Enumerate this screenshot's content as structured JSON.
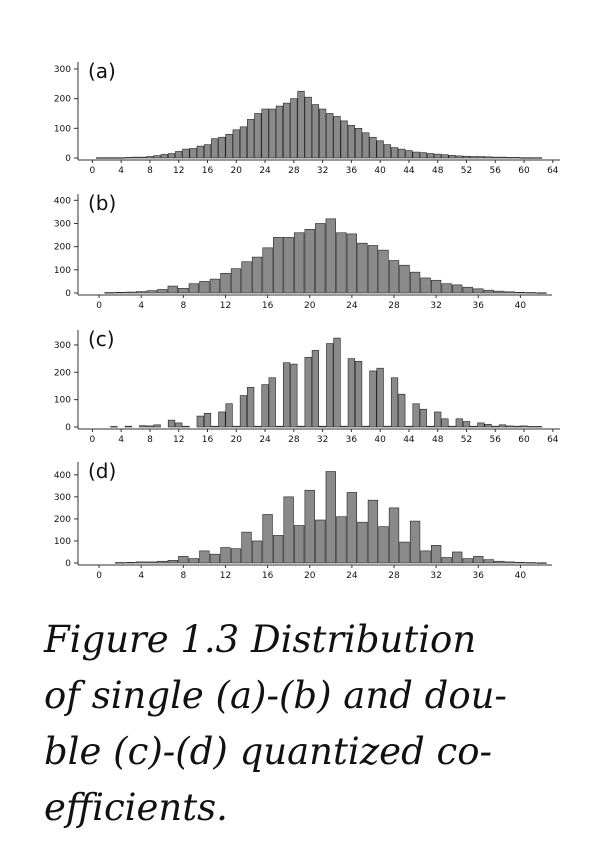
{
  "colors": {
    "bar": "#8a8a8a",
    "bar_edge": "#222222",
    "axis": "#333333",
    "text": "#111111"
  },
  "chart_data": [
    {
      "type": "bar",
      "label": "(a)",
      "x": [
        1,
        2,
        3,
        4,
        5,
        6,
        7,
        8,
        9,
        10,
        11,
        12,
        13,
        14,
        15,
        16,
        17,
        18,
        19,
        20,
        21,
        22,
        23,
        24,
        25,
        26,
        27,
        28,
        29,
        30,
        31,
        32,
        33,
        34,
        35,
        36,
        37,
        38,
        39,
        40,
        41,
        42,
        43,
        44,
        45,
        46,
        47,
        48,
        49,
        50,
        51,
        52,
        53,
        54,
        55,
        56,
        57,
        58,
        59,
        60,
        61,
        62
      ],
      "values": [
        1,
        1,
        1,
        1,
        2,
        3,
        3,
        5,
        8,
        12,
        15,
        22,
        30,
        32,
        40,
        45,
        65,
        70,
        80,
        95,
        105,
        130,
        150,
        165,
        165,
        175,
        185,
        200,
        225,
        205,
        180,
        165,
        150,
        140,
        125,
        110,
        100,
        85,
        70,
        58,
        45,
        35,
        30,
        25,
        20,
        18,
        15,
        13,
        11,
        9,
        7,
        6,
        5,
        5,
        4,
        3,
        3,
        2,
        2,
        1,
        1,
        1
      ],
      "xticks": [
        0,
        4,
        8,
        12,
        16,
        20,
        24,
        28,
        32,
        36,
        40,
        44,
        48,
        52,
        56,
        60,
        64
      ],
      "yticks": [
        0,
        100,
        200,
        300
      ],
      "xlim": [
        -2,
        65
      ],
      "ylim": [
        0,
        310
      ]
    },
    {
      "type": "bar",
      "label": "(b)",
      "x": [
        1,
        2,
        3,
        4,
        5,
        6,
        7,
        8,
        9,
        10,
        11,
        12,
        13,
        14,
        15,
        16,
        17,
        18,
        19,
        20,
        21,
        22,
        23,
        24,
        25,
        26,
        27,
        28,
        29,
        30,
        31,
        32,
        33,
        34,
        35,
        36,
        37,
        38,
        39,
        40,
        41,
        42
      ],
      "values": [
        2,
        3,
        4,
        6,
        10,
        15,
        30,
        20,
        40,
        50,
        60,
        85,
        105,
        135,
        155,
        195,
        240,
        240,
        260,
        275,
        300,
        320,
        260,
        255,
        215,
        205,
        185,
        140,
        120,
        90,
        65,
        55,
        40,
        35,
        25,
        18,
        12,
        8,
        5,
        3,
        2,
        1
      ],
      "xticks": [
        0,
        4,
        8,
        12,
        16,
        20,
        24,
        28,
        32,
        36,
        40
      ],
      "yticks": [
        0,
        100,
        200,
        300,
        400
      ],
      "xlim": [
        -2,
        43
      ],
      "ylim": [
        0,
        410
      ]
    },
    {
      "type": "bar",
      "label": "(c)",
      "x": [
        3,
        5,
        7,
        8,
        9,
        11,
        12,
        13,
        15,
        16,
        17,
        18,
        19,
        20,
        21,
        22,
        23,
        24,
        25,
        26,
        27,
        28,
        29,
        30,
        31,
        32,
        33,
        34,
        35,
        36,
        37,
        38,
        39,
        40,
        41,
        42,
        43,
        44,
        45,
        46,
        47,
        48,
        49,
        50,
        51,
        52,
        53,
        54,
        55,
        56,
        57,
        58,
        59,
        60,
        61,
        62
      ],
      "values": [
        2,
        3,
        5,
        4,
        8,
        25,
        15,
        3,
        40,
        50,
        3,
        55,
        85,
        3,
        115,
        145,
        3,
        155,
        180,
        3,
        235,
        230,
        3,
        255,
        280,
        3,
        305,
        325,
        3,
        250,
        240,
        3,
        205,
        215,
        3,
        180,
        120,
        3,
        85,
        65,
        3,
        55,
        30,
        3,
        30,
        20,
        3,
        15,
        10,
        3,
        8,
        4,
        3,
        4,
        2,
        2
      ],
      "xticks": [
        0,
        4,
        8,
        12,
        16,
        20,
        24,
        28,
        32,
        36,
        40,
        44,
        48,
        52,
        56,
        60,
        64
      ],
      "yticks": [
        0,
        100,
        200,
        300
      ],
      "xlim": [
        -2,
        65
      ],
      "ylim": [
        0,
        340
      ]
    },
    {
      "type": "bar",
      "label": "(d)",
      "x": [
        2,
        3,
        4,
        5,
        6,
        7,
        8,
        9,
        10,
        11,
        12,
        13,
        14,
        15,
        16,
        17,
        18,
        19,
        20,
        21,
        22,
        23,
        24,
        25,
        26,
        27,
        28,
        29,
        30,
        31,
        32,
        33,
        34,
        35,
        36,
        37,
        38,
        39,
        40,
        41,
        42
      ],
      "values": [
        2,
        3,
        5,
        5,
        8,
        12,
        30,
        20,
        55,
        40,
        70,
        65,
        140,
        100,
        220,
        125,
        300,
        170,
        330,
        195,
        415,
        210,
        320,
        185,
        285,
        165,
        250,
        95,
        190,
        55,
        80,
        25,
        50,
        20,
        30,
        15,
        8,
        5,
        3,
        2,
        1
      ],
      "xticks": [
        0,
        4,
        8,
        12,
        16,
        20,
        24,
        28,
        32,
        36,
        40
      ],
      "yticks": [
        0,
        100,
        200,
        300,
        400
      ],
      "xlim": [
        -2,
        43
      ],
      "ylim": [
        0,
        440
      ]
    }
  ],
  "caption": {
    "lines": [
      "Figure 1.3  Distribution",
      "of single (a)-(b) and dou-",
      "ble (c)-(d) quantized co-",
      "efficients."
    ]
  }
}
